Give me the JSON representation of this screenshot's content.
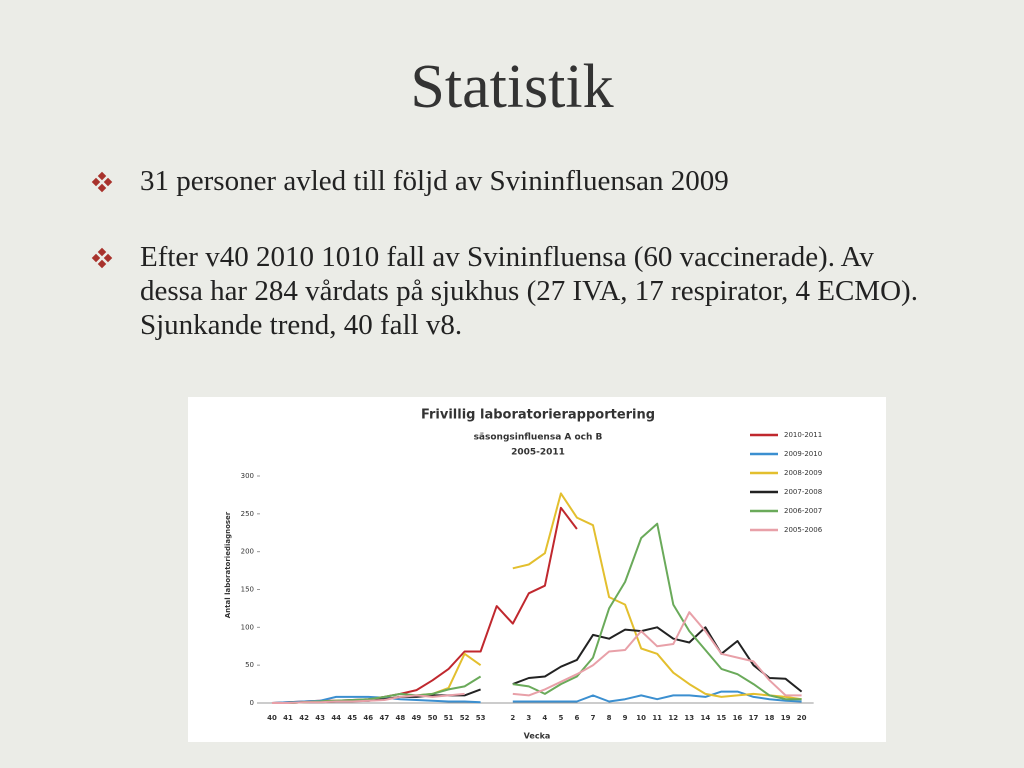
{
  "slide": {
    "title": "Statistik",
    "bullets": [
      "31 personer avled till följd av Svininfluensan 2009",
      "Efter v40 2010 1010 fall av Svininfluensa (60 vaccinerade). Av dessa har 284 vårdats på sjukhus (27 IVA, 17 respirator, 4 ECMO). Sjunkande trend, 40 fall v8."
    ]
  },
  "chart_data": {
    "type": "line",
    "title": "Frivillig laboratorierapportering",
    "subtitle": "säsongsinfluensa A och B",
    "period": "2005-2011",
    "x_label": "Vecka",
    "y_label": "Antal laboratoriediagnoser",
    "categories": [
      "40",
      "41",
      "42",
      "43",
      "44",
      "45",
      "46",
      "47",
      "48",
      "49",
      "50",
      "51",
      "52",
      "53",
      null,
      "2",
      "3",
      "4",
      "5",
      "6",
      "7",
      "8",
      "9",
      "10",
      "11",
      "12",
      "13",
      "14",
      "15",
      "16",
      "17",
      "18",
      "19",
      "20"
    ],
    "ylim": [
      0,
      300
    ],
    "yticks": [
      0,
      50,
      100,
      150,
      200,
      250,
      300
    ],
    "series": [
      {
        "name": "2010-2011",
        "color": "#c0282e",
        "values": [
          0,
          1,
          2,
          3,
          3,
          4,
          5,
          8,
          12,
          17,
          30,
          45,
          68,
          68,
          128,
          105,
          145,
          155,
          258,
          230,
          null,
          null,
          null,
          null,
          null,
          null,
          null,
          null,
          null,
          null,
          null,
          null,
          null,
          null
        ]
      },
      {
        "name": "2009-2010",
        "color": "#3b8fd0",
        "values": [
          0,
          1,
          2,
          3,
          8,
          8,
          8,
          7,
          5,
          4,
          3,
          2,
          2,
          1,
          null,
          2,
          2,
          2,
          2,
          2,
          10,
          2,
          5,
          10,
          5,
          10,
          10,
          8,
          15,
          15,
          8,
          5,
          3,
          2
        ]
      },
      {
        "name": "2008-2009",
        "color": "#e3bf2e",
        "values": [
          0,
          0,
          1,
          2,
          3,
          3,
          4,
          5,
          8,
          10,
          12,
          20,
          65,
          50,
          null,
          178,
          183,
          198,
          277,
          245,
          235,
          140,
          130,
          72,
          65,
          40,
          25,
          12,
          8,
          10,
          12,
          10,
          8,
          5
        ]
      },
      {
        "name": "2007-2008",
        "color": "#222222",
        "values": [
          0,
          0,
          1,
          1,
          2,
          3,
          3,
          5,
          8,
          8,
          10,
          10,
          10,
          18,
          null,
          25,
          33,
          35,
          48,
          57,
          90,
          85,
          97,
          95,
          100,
          85,
          80,
          100,
          65,
          82,
          50,
          33,
          32,
          15
        ]
      },
      {
        "name": "2006-2007",
        "color": "#6aaa5a",
        "values": [
          0,
          0,
          1,
          2,
          3,
          4,
          5,
          8,
          12,
          10,
          12,
          18,
          22,
          35,
          null,
          25,
          22,
          12,
          25,
          35,
          60,
          125,
          160,
          218,
          237,
          130,
          95,
          70,
          45,
          38,
          25,
          10,
          5,
          5
        ]
      },
      {
        "name": "2005-2006",
        "color": "#e8a0a8",
        "values": [
          0,
          0,
          1,
          1,
          2,
          2,
          3,
          4,
          8,
          10,
          8,
          10,
          12,
          null,
          null,
          12,
          10,
          18,
          28,
          38,
          50,
          68,
          70,
          95,
          75,
          78,
          120,
          95,
          65,
          60,
          55,
          30,
          10,
          10
        ]
      }
    ]
  }
}
